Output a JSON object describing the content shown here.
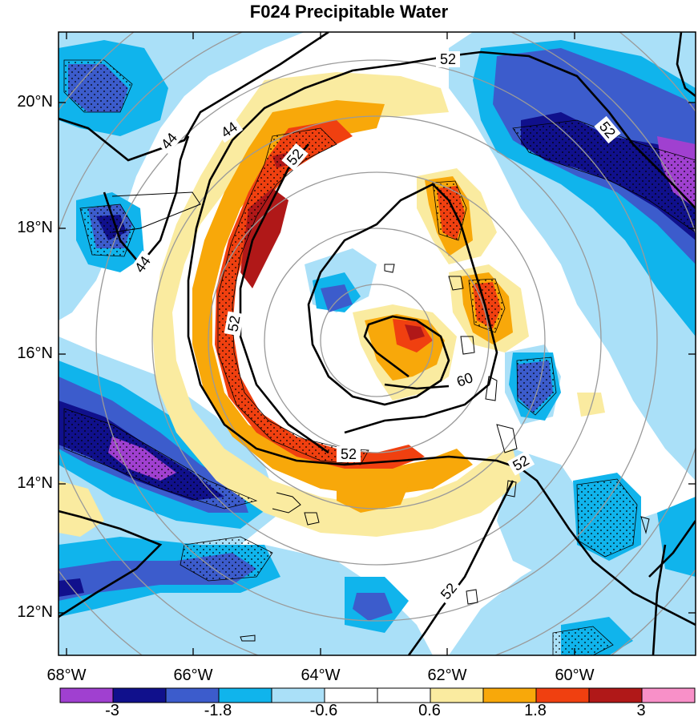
{
  "title": "F024 Precipitable Water",
  "lat_ticks": [
    "20°N",
    "18°N",
    "16°N",
    "14°N",
    "12°N"
  ],
  "lon_ticks": [
    "68°W",
    "66°W",
    "64°W",
    "62°W",
    "60°W"
  ],
  "contour_labels": [
    "44",
    "44",
    "44",
    "52",
    "52",
    "52",
    "52",
    "52",
    "52",
    "52",
    "60"
  ],
  "colorbar": {
    "colors": [
      "#a040d0",
      "#10108c",
      "#3c5ccc",
      "#10b4ec",
      "#aae0f8",
      "#ffffff",
      "#ffffff",
      "#faeba0",
      "#f8a80a",
      "#f04010",
      "#b01818",
      "#f890c8"
    ],
    "labels": [
      "-3",
      "-1.8",
      "-0.6",
      "0.6",
      "1.8",
      "3"
    ]
  },
  "colors": {
    "range_rings": "#9a9a9a",
    "contours": "#000000"
  }
}
